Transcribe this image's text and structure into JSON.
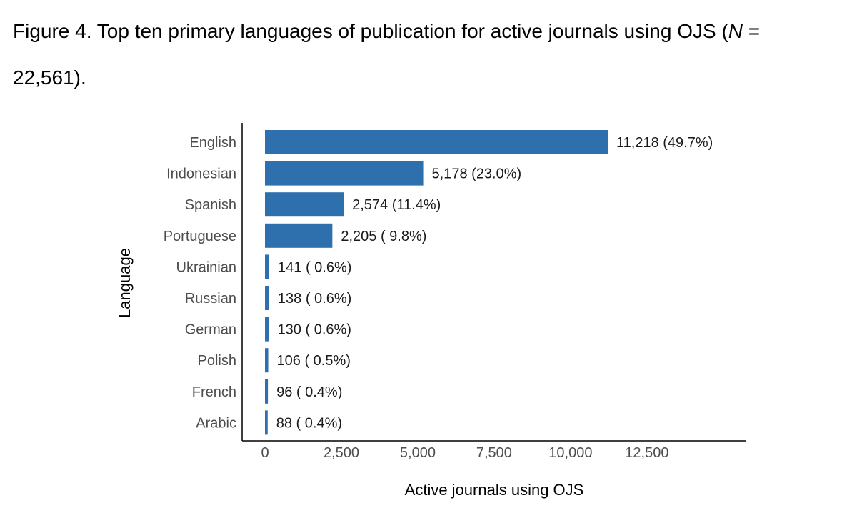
{
  "figure": {
    "caption_prefix": "Figure 4. Top ten primary languages of publication for active journals using OJS (",
    "caption_n_symbol": "N",
    "caption_suffix_line1": " =",
    "caption_line2": "22,561)."
  },
  "chart_data": {
    "type": "bar",
    "orientation": "horizontal",
    "categories": [
      "English",
      "Indonesian",
      "Spanish",
      "Portuguese",
      "Ukrainian",
      "Russian",
      "German",
      "Polish",
      "French",
      "Arabic"
    ],
    "values": [
      11218,
      5178,
      2574,
      2205,
      141,
      138,
      130,
      106,
      96,
      88
    ],
    "data_labels": [
      "11,218 (49.7%)",
      "5,178 (23.0%)",
      "2,574 (11.4%)",
      "2,205 ( 9.8%)",
      "141 ( 0.6%)",
      "138 ( 0.6%)",
      "130 ( 0.6%)",
      "106 ( 0.5%)",
      "96 ( 0.4%)",
      "88 ( 0.4%)"
    ],
    "xlabel": "Active journals using OJS",
    "ylabel": "Language",
    "xticks": [
      0,
      2500,
      5000,
      7500,
      10000,
      12500
    ],
    "xtick_labels": [
      "0",
      "2,500",
      "5,000",
      "7,500",
      "10,000",
      "12,500"
    ],
    "xlim": [
      0,
      15500
    ],
    "bar_color": "#2e6fad",
    "grid": false
  }
}
